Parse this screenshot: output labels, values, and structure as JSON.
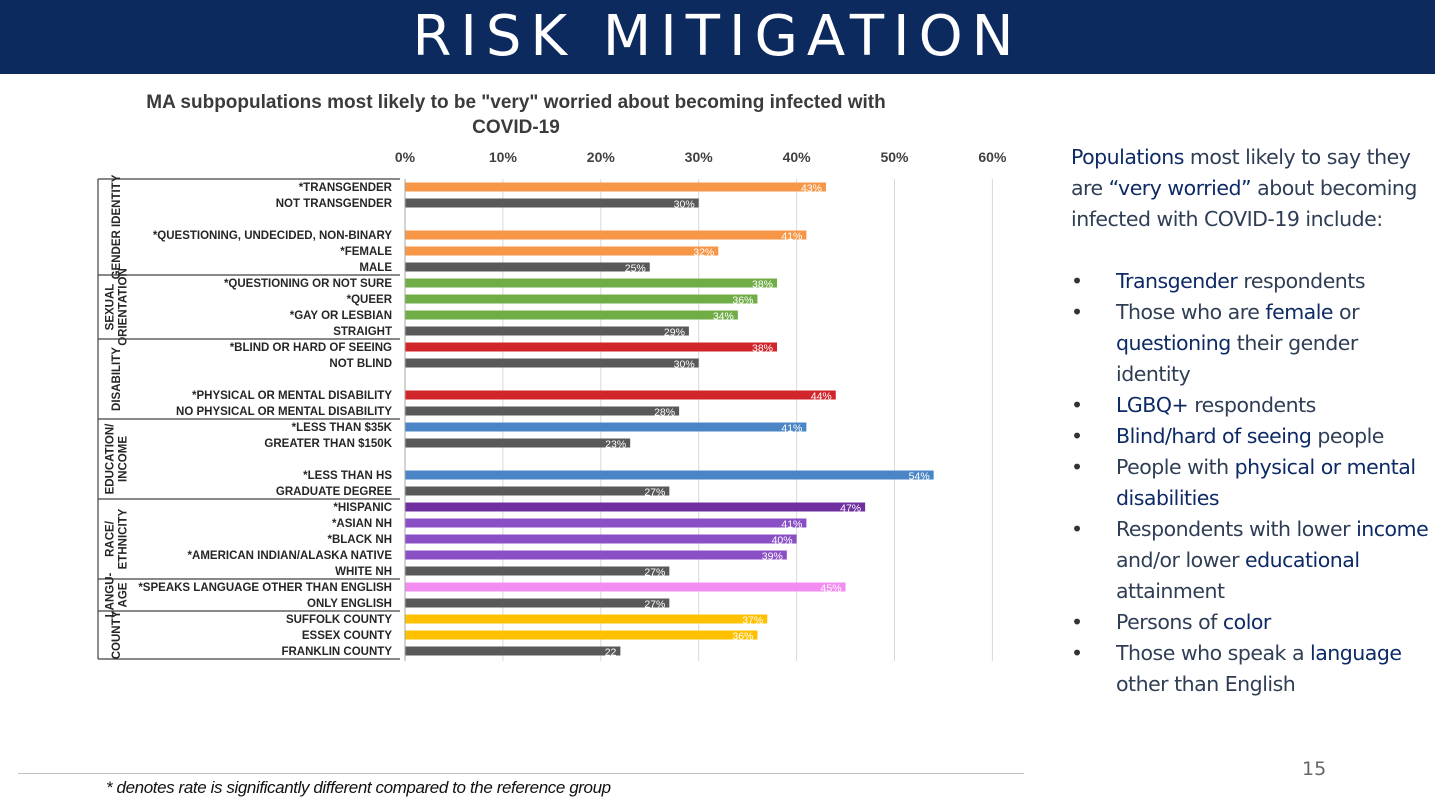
{
  "header": {
    "title": "RISK MITIGATION"
  },
  "chart_data": {
    "type": "bar",
    "orientation": "horizontal",
    "title": "MA subpopulations most likely to be \"very\" worried about becoming infected with COVID-19",
    "title_lines": [
      "MA subpopulations most likely to be \"very\" worried about becoming infected with",
      "COVID-19"
    ],
    "xlim": [
      0,
      60
    ],
    "x_ticks": [
      "0%",
      "10%",
      "20%",
      "30%",
      "40%",
      "50%",
      "60%"
    ],
    "grid": true,
    "groups": [
      {
        "name": "GENDER IDENTITY",
        "label_lines": [
          "GENDER IDENTITY"
        ],
        "bars": [
          {
            "label": "*TRANSGENDER",
            "value": 43,
            "value_label": "43%",
            "color": "#f79646"
          },
          {
            "label": "NOT TRANSGENDER",
            "value": 30,
            "value_label": "30%",
            "color": "#595959"
          },
          {
            "label": "",
            "value": null,
            "value_label": "",
            "color": ""
          },
          {
            "label": "*QUESTIONING, UNDECIDED, NON-BINARY",
            "value": 41,
            "value_label": "41%",
            "color": "#f79646"
          },
          {
            "label": "*FEMALE",
            "value": 32,
            "value_label": "32%",
            "color": "#f79646"
          },
          {
            "label": "MALE",
            "value": 25,
            "value_label": "25%",
            "color": "#595959"
          }
        ]
      },
      {
        "name": "SEXUAL ORIENTATION",
        "label_lines": [
          "SEXUAL",
          "ORIENTATION"
        ],
        "bars": [
          {
            "label": "*QUESTIONING OR NOT SURE",
            "value": 38,
            "value_label": "38%",
            "color": "#70ad47"
          },
          {
            "label": "*QUEER",
            "value": 36,
            "value_label": "36%",
            "color": "#70ad47"
          },
          {
            "label": "*GAY OR LESBIAN",
            "value": 34,
            "value_label": "34%",
            "color": "#70ad47"
          },
          {
            "label": "STRAIGHT",
            "value": 29,
            "value_label": "29%",
            "color": "#595959"
          }
        ]
      },
      {
        "name": "DISABILITY",
        "label_lines": [
          "DISABILITY"
        ],
        "bars": [
          {
            "label": "*BLIND OR HARD OF SEEING",
            "value": 38,
            "value_label": "38%",
            "color": "#d0262b"
          },
          {
            "label": "NOT BLIND",
            "value": 30,
            "value_label": "30%",
            "color": "#595959"
          },
          {
            "label": "",
            "value": null,
            "value_label": "",
            "color": ""
          },
          {
            "label": "*PHYSICAL OR MENTAL DISABILITY",
            "value": 44,
            "value_label": "44%",
            "color": "#d0262b"
          },
          {
            "label": "NO PHYSICAL OR MENTAL DISABILITY",
            "value": 28,
            "value_label": "28%",
            "color": "#595959"
          }
        ]
      },
      {
        "name": "EDUCATION/ INCOME",
        "label_lines": [
          "EDUCATION/",
          "INCOME"
        ],
        "bars": [
          {
            "label": "*LESS THAN $35K",
            "value": 41,
            "value_label": "41%",
            "color": "#4a86c5"
          },
          {
            "label": "GREATER THAN $150K",
            "value": 23,
            "value_label": "23%",
            "color": "#595959"
          },
          {
            "label": "",
            "value": null,
            "value_label": "",
            "color": ""
          },
          {
            "label": "*LESS THAN HS",
            "value": 54,
            "value_label": "54%",
            "color": "#4a86c5"
          },
          {
            "label": "GRADUATE DEGREE",
            "value": 27,
            "value_label": "27%",
            "color": "#595959"
          }
        ]
      },
      {
        "name": "RACE/ ETHNICITY",
        "label_lines": [
          "RACE/",
          "ETHNICITY"
        ],
        "bars": [
          {
            "label": "*HISPANIC",
            "value": 47,
            "value_label": "47%",
            "color": "#7030a0"
          },
          {
            "label": "*ASIAN NH",
            "value": 41,
            "value_label": "41%",
            "color": "#8a4fc4"
          },
          {
            "label": "*BLACK NH",
            "value": 40,
            "value_label": "40%",
            "color": "#8a4fc4"
          },
          {
            "label": "*AMERICAN INDIAN/ALASKA NATIVE",
            "value": 39,
            "value_label": "39%",
            "color": "#8a4fc4"
          },
          {
            "label": "WHITE NH",
            "value": 27,
            "value_label": "27%",
            "color": "#595959"
          }
        ]
      },
      {
        "name": "LANGU- AGE",
        "label_lines": [
          "LANGU-",
          "AGE"
        ],
        "bars": [
          {
            "label": "*SPEAKS LANGUAGE OTHER THAN ENGLISH",
            "value": 45,
            "value_label": "45%",
            "color": "#f38cf0"
          },
          {
            "label": "ONLY ENGLISH",
            "value": 27,
            "value_label": "27%",
            "color": "#595959"
          }
        ]
      },
      {
        "name": "COUNTY",
        "label_lines": [
          "COUNTY"
        ],
        "bars": [
          {
            "label": "SUFFOLK COUNTY",
            "value": 37,
            "value_label": "37%",
            "color": "#ffc000"
          },
          {
            "label": "ESSEX COUNTY",
            "value": 36,
            "value_label": "36%",
            "color": "#ffc000"
          },
          {
            "label": "FRANKLIN COUNTY",
            "value": 22,
            "value_label": "22",
            "color": "#595959"
          }
        ]
      }
    ],
    "footnote": "* denotes rate is significantly different compared to the reference group"
  },
  "side_text": {
    "intro": [
      {
        "t": "Populations",
        "hl": true
      },
      {
        "t": " most likely to say they are ",
        "hl": false
      },
      {
        "t": "“very worried”",
        "hl": true
      },
      {
        "t": " about becoming infected with COVID-19 include:",
        "hl": false
      }
    ],
    "bullets": [
      [
        {
          "t": "Transgender",
          "hl": true
        },
        {
          "t": " respondents",
          "hl": false
        }
      ],
      [
        {
          "t": "Those who are ",
          "hl": false
        },
        {
          "t": "female",
          "hl": true
        },
        {
          "t": " or ",
          "hl": false
        },
        {
          "t": "questioning",
          "hl": true
        },
        {
          "t": " their gender identity",
          "hl": false
        }
      ],
      [
        {
          "t": "LGBQ+",
          "hl": true
        },
        {
          "t": " respondents",
          "hl": false
        }
      ],
      [
        {
          "t": "Blind/hard of seeing",
          "hl": true
        },
        {
          "t": " people",
          "hl": false
        }
      ],
      [
        {
          "t": "People with ",
          "hl": false
        },
        {
          "t": "physical or mental disabilities",
          "hl": true
        }
      ],
      [
        {
          "t": "Respondents with lower ",
          "hl": false
        },
        {
          "t": "income",
          "hl": true
        },
        {
          "t": " and/or lower ",
          "hl": false
        },
        {
          "t": "educational",
          "hl": true
        },
        {
          "t": " attainment",
          "hl": false
        }
      ],
      [
        {
          "t": "Persons of ",
          "hl": false
        },
        {
          "t": "color",
          "hl": true
        }
      ],
      [
        {
          "t": "Those who speak a ",
          "hl": false
        },
        {
          "t": "language",
          "hl": true
        },
        {
          "t": " other than English",
          "hl": false
        }
      ]
    ],
    "bullet_char": "•"
  },
  "page_number": "15"
}
